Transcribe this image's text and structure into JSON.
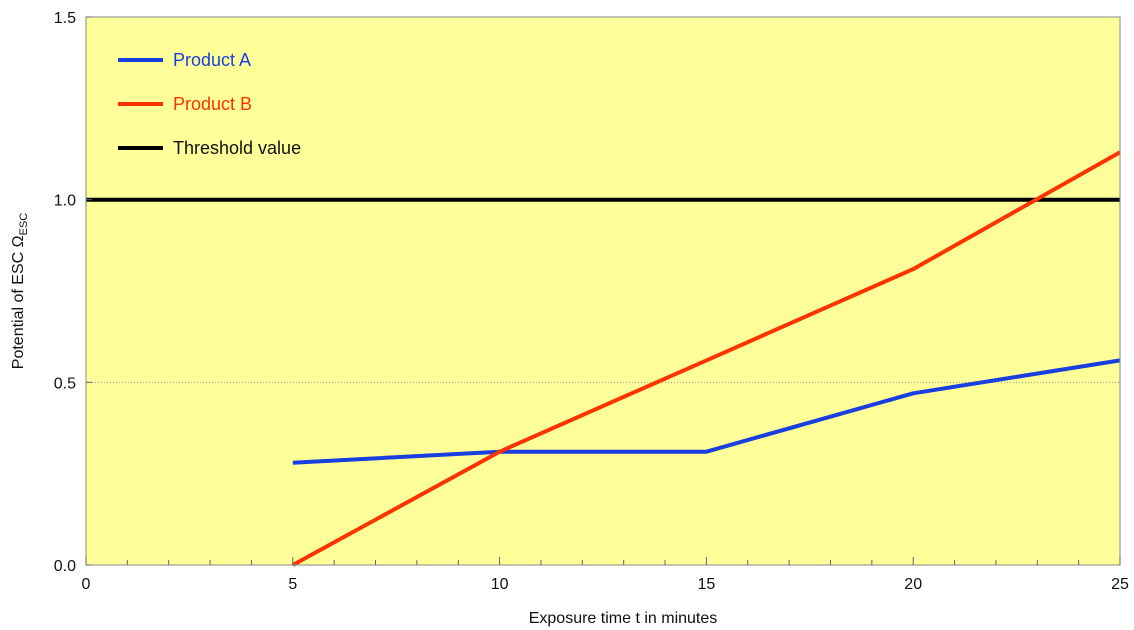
{
  "chart_data": {
    "type": "line",
    "xlabel": "Exposure time t in minutes",
    "ylabel": "Potential of ESC Ω",
    "ylabel_subscript": "ESC",
    "xlim": [
      0,
      25
    ],
    "ylim": [
      0,
      1.5
    ],
    "x_ticks": [
      0,
      5,
      10,
      15,
      20,
      25
    ],
    "x_tick_labels": [
      "0",
      "5",
      "10",
      "15",
      "20",
      "25"
    ],
    "y_ticks": [
      0,
      0.5,
      1.0,
      1.5
    ],
    "y_tick_labels": [
      "0.0",
      "0.5",
      "1.0",
      "1.5"
    ],
    "x_minor_step": 1,
    "gridlines_y": [
      0.5
    ],
    "legend_position": "top-left",
    "background_color": "#ffff99",
    "series": [
      {
        "name": "Product A",
        "color": "#1a3fe0",
        "x": [
          5,
          10,
          15,
          20,
          25
        ],
        "y": [
          0.28,
          0.31,
          0.31,
          0.47,
          0.56
        ]
      },
      {
        "name": "Product B",
        "color": "#ff3300",
        "x": [
          5,
          10,
          15,
          20,
          25
        ],
        "y": [
          0.0,
          0.31,
          0.56,
          0.81,
          1.13
        ]
      },
      {
        "name": "Threshold value",
        "color": "#000000",
        "x": [
          0,
          25
        ],
        "y": [
          1.0,
          1.0
        ]
      }
    ]
  }
}
